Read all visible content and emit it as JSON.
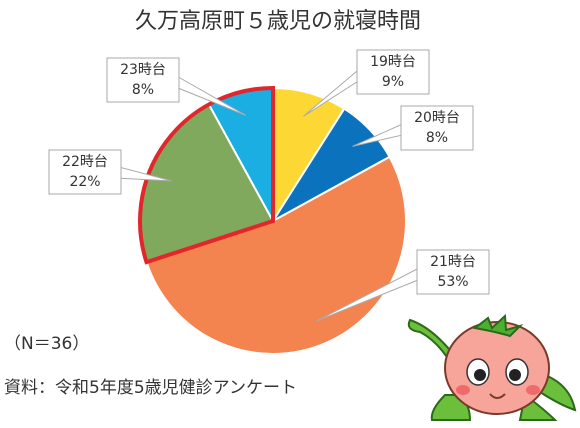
{
  "chart_data": {
    "type": "pie",
    "title": "久万高原町５歳児の就寝時間",
    "categories": [
      "19時台",
      "20時台",
      "21時台",
      "22時台",
      "23時台"
    ],
    "values": [
      9,
      8,
      53,
      22,
      8
    ],
    "value_labels": [
      "9%",
      "8%",
      "53%",
      "22%",
      "8%"
    ],
    "colors": [
      "#fdd835",
      "#0b72bd",
      "#f4844f",
      "#80a95e",
      "#1aaee2"
    ],
    "highlight": [
      3,
      4
    ],
    "highlight_color": "#e3262b",
    "notes": [
      "（N＝36）",
      "資料：令和5年度5歳児健診アンケート"
    ]
  }
}
